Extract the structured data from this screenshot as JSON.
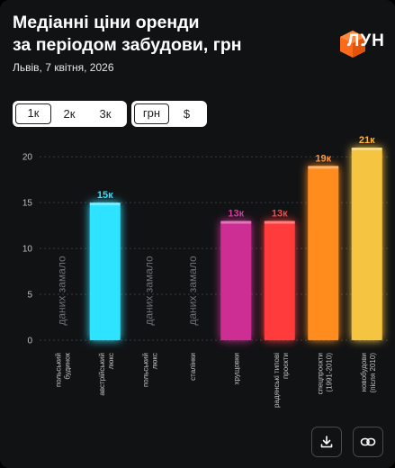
{
  "header": {
    "title_line1": "Медіанні ціни оренди",
    "title_line2": "за періодом забудови, грн",
    "subtitle": "Львів, 7 квітня, 2026",
    "logo_text": "ЛУН"
  },
  "controls": {
    "room_tabs": [
      {
        "label": "1к",
        "active": true
      },
      {
        "label": "2к",
        "active": false
      },
      {
        "label": "3к",
        "active": false
      }
    ],
    "currency_tabs": [
      {
        "label": "грн",
        "active": true
      },
      {
        "label": "$",
        "active": false
      }
    ]
  },
  "actions": {
    "download_icon": "download-icon",
    "link_icon": "link-icon"
  },
  "chart_data": {
    "type": "bar",
    "title": "Медіанні ціни оренди за періодом забудови, грн",
    "ylim": [
      0,
      21
    ],
    "yticks": [
      0,
      5,
      10,
      15,
      20
    ],
    "grid": true,
    "no_data_label": "даних замало",
    "categories": [
      [
        "польський",
        "будинок"
      ],
      [
        "австрійський",
        "люкс"
      ],
      [
        "польський",
        "люкс"
      ],
      [
        "сталінки"
      ],
      [
        "хрущовки"
      ],
      [
        "радянські типові",
        "проєкти"
      ],
      [
        "спецпроєкти",
        "(1991-2010)"
      ],
      [
        "новобудови",
        "(після 2010)"
      ]
    ],
    "values": [
      null,
      15,
      null,
      null,
      13,
      13,
      19,
      21
    ],
    "value_labels": [
      "",
      "15к",
      "",
      "",
      "13к",
      "13к",
      "19к",
      "21к"
    ],
    "bar_colors": [
      "",
      "#2ee3ff",
      "",
      "",
      "#cc2f93",
      "#ff3a3a",
      "#ff8c1a",
      "#f5c542"
    ],
    "label_colors": [
      "",
      "#2ee3ff",
      "",
      "",
      "#d63a9c",
      "#ff4545",
      "#ff9a3a",
      "#ffb347"
    ]
  }
}
